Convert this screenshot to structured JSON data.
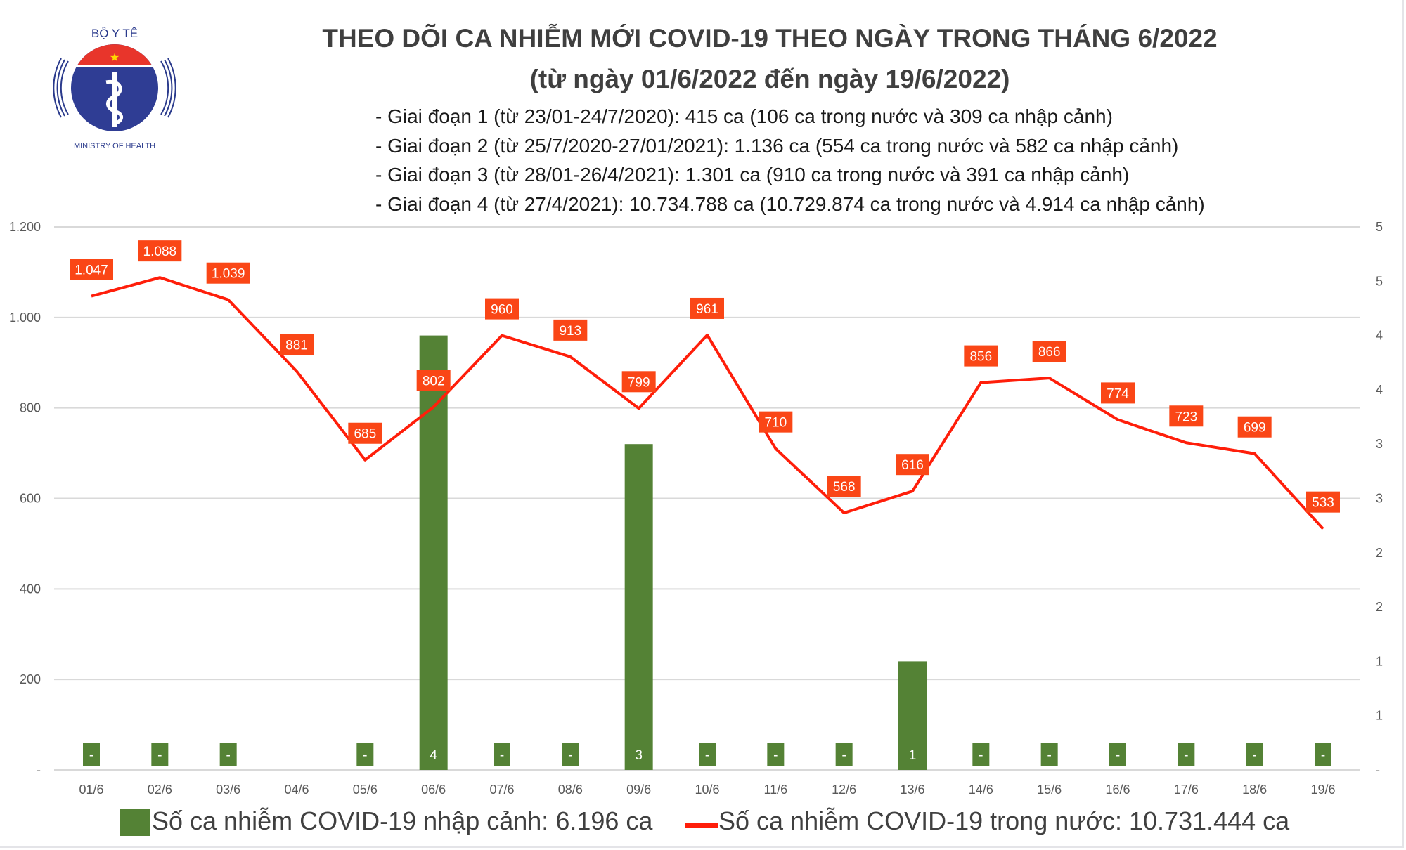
{
  "logo": {
    "top_text": "BỘ Y TẾ",
    "bottom_text": "MINISTRY OF HEALTH"
  },
  "title_line1": "THEO DÕI CA NHIỄM MỚI COVID-19 THEO NGÀY TRONG THÁNG 6/2022",
  "title_line2": "(từ ngày 01/6/2022 đến ngày 19/6/2022)",
  "notes": [
    "- Giai đoạn 1 (từ 23/01-24/7/2020): 415 ca (106 ca trong nước và 309 ca nhập cảnh)",
    "- Giai đoạn 2 (từ 25/7/2020-27/01/2021): 1.136 ca (554 ca trong nước và 582 ca nhập cảnh)",
    "- Giai đoạn 3 (từ 28/01-26/4/2021): 1.301 ca (910 ca trong nước và 391 ca nhập cảnh)",
    "- Giai đoạn 4 (từ 27/4/2021): 10.734.788 ca (10.729.874 ca trong nước và 4.914 ca nhập cảnh)"
  ],
  "colors": {
    "bar": "#548235",
    "line": "#ff1e0a",
    "label_box": "#fa4616",
    "grid": "#d9d9d9"
  },
  "chart_data": {
    "type": "bar+line",
    "categories": [
      "01/6",
      "02/6",
      "03/6",
      "04/6",
      "05/6",
      "06/6",
      "07/6",
      "08/6",
      "09/6",
      "10/6",
      "11/6",
      "12/6",
      "13/6",
      "14/6",
      "15/6",
      "16/6",
      "17/6",
      "18/6",
      "19/6"
    ],
    "series": [
      {
        "name": "Số ca nhiễm COVID-19 nhập cảnh: 6.196 ca",
        "type": "bar",
        "axis": "right",
        "values": [
          0,
          0,
          0,
          null,
          0,
          4,
          0,
          0,
          3,
          0,
          0,
          0,
          1,
          0,
          0,
          0,
          0,
          0,
          0
        ],
        "data_labels": [
          "-",
          "-",
          "-",
          "",
          "-",
          "4",
          "-",
          "-",
          "3",
          "-",
          "-",
          "-",
          "1",
          "-",
          "-",
          "-",
          "-",
          "-",
          "-"
        ]
      },
      {
        "name": "Số ca nhiễm COVID-19 trong nước: 10.731.444 ca",
        "type": "line",
        "axis": "left",
        "values": [
          1047,
          1088,
          1039,
          881,
          685,
          802,
          960,
          913,
          799,
          961,
          710,
          568,
          616,
          856,
          866,
          774,
          723,
          699,
          533
        ],
        "data_labels": [
          "1.047",
          "1.088",
          "1.039",
          "881",
          "685",
          "802",
          "960",
          "913",
          "799",
          "961",
          "710",
          "568",
          "616",
          "856",
          "866",
          "774",
          "723",
          "699",
          "533"
        ]
      }
    ],
    "left_axis": {
      "ylim": [
        0,
        1200
      ],
      "ticks": [
        1200,
        1000,
        800,
        600,
        400,
        200,
        0
      ],
      "tick_labels": [
        "1.200",
        "1.000",
        "800",
        "600",
        "400",
        "200",
        "-"
      ]
    },
    "right_axis": {
      "ylim": [
        0,
        5
      ],
      "ticks": [
        5,
        4.5,
        4,
        3.5,
        3,
        2.5,
        2,
        1.5,
        1,
        0.5,
        0
      ],
      "tick_labels": [
        "5",
        "5",
        "4",
        "4",
        "3",
        "3",
        "2",
        "2",
        "1",
        "1",
        "-"
      ]
    },
    "grid": true,
    "legend_placement": "bottom"
  }
}
